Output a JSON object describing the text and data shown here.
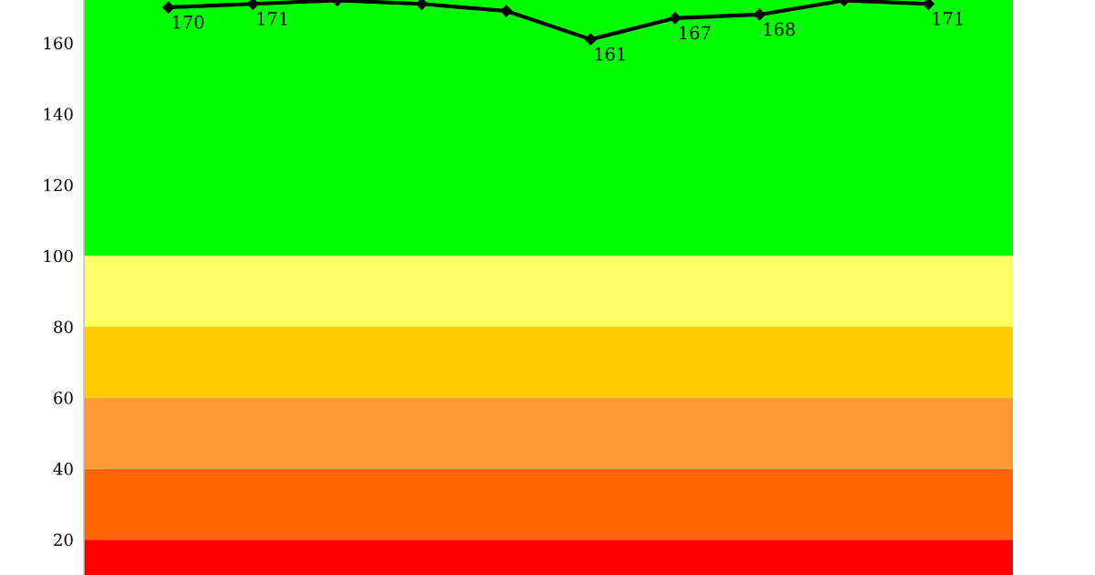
{
  "chart_data": {
    "type": "line",
    "categories": [
      null,
      null,
      null,
      null,
      null,
      null,
      null,
      null,
      null,
      null
    ],
    "series": [
      {
        "color": "#000000",
        "values": [
          170,
          171,
          172,
          171,
          169,
          161,
          167,
          168,
          172,
          171
        ],
        "value_labels": [
          "170",
          "171",
          null,
          null,
          null,
          "161",
          "167",
          "168",
          null,
          "171"
        ]
      }
    ],
    "ylim": [
      10,
      172.1
    ],
    "yticks": [
      20,
      40,
      60,
      80,
      100,
      120,
      140,
      160
    ],
    "bands": [
      {
        "axis": "y",
        "from": 10,
        "to": 20,
        "color": "#ff0000"
      },
      {
        "axis": "y",
        "from": 20,
        "to": 40,
        "color": "#ff6600"
      },
      {
        "axis": "y",
        "from": 40,
        "to": 60,
        "color": "#ff9933"
      },
      {
        "axis": "y",
        "from": 60,
        "to": 80,
        "color": "#ffcc00"
      },
      {
        "axis": "y",
        "from": 80,
        "to": 100,
        "color": "#ffff66"
      },
      {
        "axis": "y",
        "from": 100,
        "to": 172.1,
        "color": "#00ff00"
      }
    ],
    "marker": "diamond",
    "line_style": "solid"
  }
}
